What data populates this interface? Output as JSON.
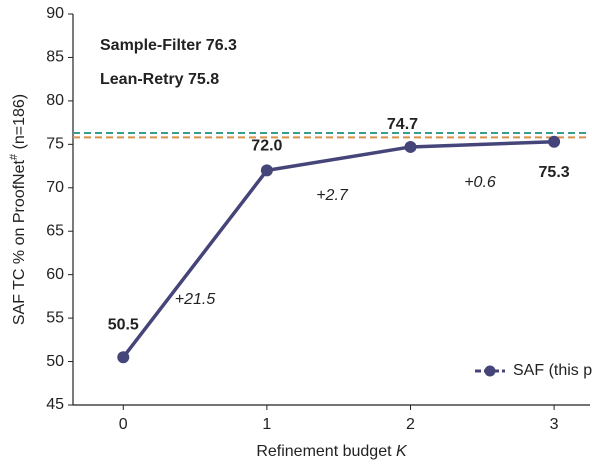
{
  "chart_data": {
    "type": "line",
    "ylabel": {
      "main": "SAF TC %  on ProofNet",
      "sup": "#",
      "tail": " (n=186)"
    },
    "xlabel": {
      "main": "Refinement budget ",
      "var": "K"
    },
    "x": [
      0,
      1,
      2,
      3
    ],
    "series": [
      {
        "name": "SAF (this paper)",
        "color": "#45457a",
        "values": [
          50.5,
          72.0,
          74.7,
          75.3
        ],
        "value_labels": [
          "50.5",
          "72.0",
          "74.7",
          "75.3"
        ]
      }
    ],
    "reference_lines": [
      {
        "label": "Sample-Filter 76.3",
        "value": 76.3,
        "color": "#3a9e8f"
      },
      {
        "label": "Lean-Retry 75.8",
        "value": 75.8,
        "color": "#d9904a"
      }
    ],
    "annotations": [
      "+21.5",
      "+2.7",
      "+0.6"
    ],
    "xlim": [
      -0.35,
      3.25
    ],
    "ylim": [
      45,
      90
    ],
    "xticks": [
      0,
      1,
      2,
      3
    ],
    "yticks": [
      45,
      50,
      55,
      60,
      65,
      70,
      75,
      80,
      85,
      90
    ],
    "legend": "lower right"
  }
}
